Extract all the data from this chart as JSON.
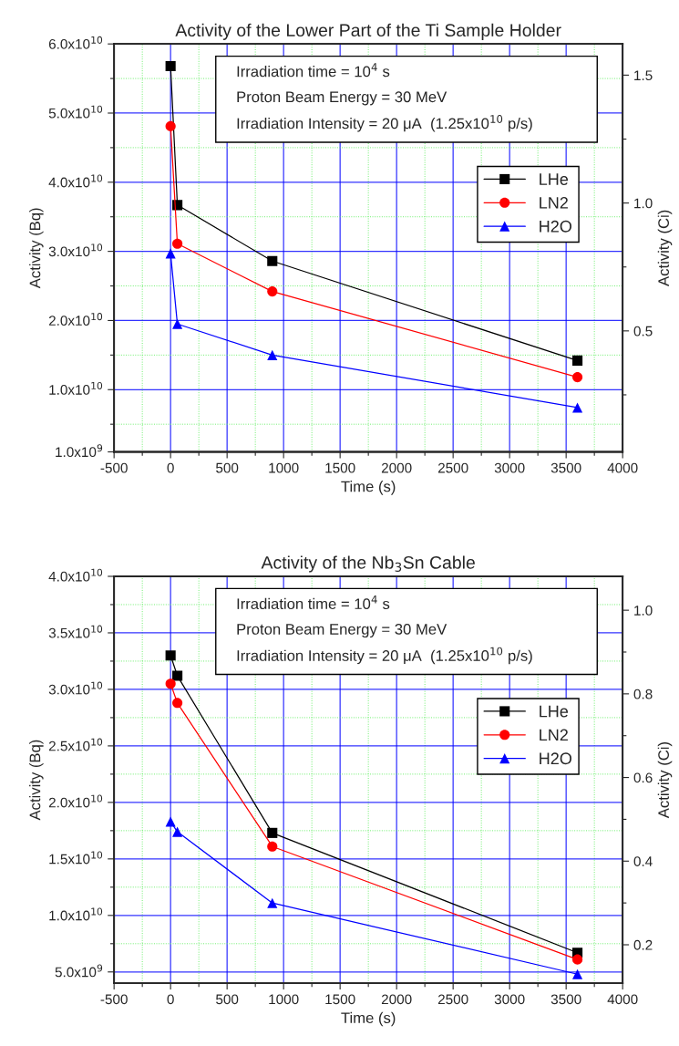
{
  "chart_data": [
    {
      "type": "line",
      "title": "Activity of the Lower Part of the Ti Sample Holder",
      "xlabel": "Time (s)",
      "ylabel": "Activity (Bq)",
      "y2label": "Activity (Ci)",
      "annotations": [
        "Irradiation time = 10$^{4}$ s",
        "Proton Beam Energy = 30 MeV",
        "Irradiation Intensity = 20 μA  (1.25x10$^{10}$ p/s)"
      ],
      "x": [
        0,
        60,
        900,
        3600
      ],
      "series": [
        {
          "name": "LHe",
          "color": "#000000",
          "marker": "square",
          "values": [
            56800000000.0,
            36700000000.0,
            28600000000.0,
            14200000000.0
          ]
        },
        {
          "name": "LN2",
          "color": "#ff0000",
          "marker": "circle",
          "values": [
            48100000000.0,
            31100000000.0,
            24200000000.0,
            11800000000.0
          ]
        },
        {
          "name": "H2O",
          "color": "#0000ff",
          "marker": "triangle",
          "values": [
            29700000000.0,
            19500000000.0,
            15000000000.0,
            7400000000.0
          ]
        }
      ],
      "xlim": [
        -500,
        4000
      ],
      "xticks": [
        -500,
        {
          "value": -250,
          "label": null
        },
        0,
        {
          "value": 250,
          "label": null
        },
        500,
        {
          "value": 750,
          "label": null
        },
        1000,
        {
          "value": 1250,
          "label": null
        },
        1500,
        {
          "value": 1750,
          "label": null
        },
        2000,
        {
          "value": 2250,
          "label": null
        },
        2500,
        {
          "value": 2750,
          "label": null
        },
        3000,
        {
          "value": 3250,
          "label": null
        },
        3500,
        {
          "value": 3750,
          "label": null
        },
        4000
      ],
      "ylim": [
        1000000000.0,
        60000000000.0
      ],
      "yticks": [
        {
          "value": 1000000000.0,
          "label": "1.0x10$^{9}$"
        },
        {
          "value": 5000000000.0,
          "label": null
        },
        {
          "value": 10000000000.0,
          "label": "1.0x10$^{10}$"
        },
        {
          "value": 15000000000.0,
          "label": null
        },
        {
          "value": 20000000000.0,
          "label": "2.0x10$^{10}$"
        },
        {
          "value": 25000000000.0,
          "label": null
        },
        {
          "value": 30000000000.0,
          "label": "3.0x10$^{10}$"
        },
        {
          "value": 35000000000.0,
          "label": null
        },
        {
          "value": 40000000000.0,
          "label": "4.0x10$^{10}$"
        },
        {
          "value": 45000000000.0,
          "label": null
        },
        {
          "value": 50000000000.0,
          "label": "5.0x10$^{10}$"
        },
        {
          "value": 55000000000.0,
          "label": null
        },
        {
          "value": 60000000000.0,
          "label": "6.0x10$^{10}$"
        }
      ],
      "y2lim": [
        0.027,
        1.622
      ],
      "y2ticks": [
        {
          "value": 0.25,
          "label": null
        },
        0.5,
        {
          "value": 0.75,
          "label": null
        },
        {
          "value": 1,
          "label": "1.0"
        },
        {
          "value": 1.25,
          "label": null
        },
        1.5
      ],
      "grid": true,
      "legend": "right",
      "line_style": "solid"
    },
    {
      "type": "line",
      "title": "Activity of the Nb$_{3}$Sn Cable",
      "xlabel": "Time (s)",
      "ylabel": "Activity (Bq)",
      "y2label": "Activity (Ci)",
      "annotations": [
        "Irradiation time = 10$^{4}$ s",
        "Proton Beam Energy = 30 MeV",
        "Irradiation Intensity = 20 μA  (1.25x10$^{10}$ p/s)"
      ],
      "x": [
        0,
        60,
        900,
        3600
      ],
      "series": [
        {
          "name": "LHe",
          "color": "#000000",
          "marker": "square",
          "values": [
            33000000000.0,
            31200000000.0,
            17300000000.0,
            6700000000.0
          ]
        },
        {
          "name": "LN2",
          "color": "#ff0000",
          "marker": "circle",
          "values": [
            30500000000.0,
            28800000000.0,
            16100000000.0,
            6100000000.0
          ]
        },
        {
          "name": "H2O",
          "color": "#0000ff",
          "marker": "triangle",
          "values": [
            18300000000.0,
            17400000000.0,
            11100000000.0,
            4800000000.0
          ]
        }
      ],
      "xlim": [
        -500,
        4000
      ],
      "xticks": [
        -500,
        {
          "value": -250,
          "label": null
        },
        0,
        {
          "value": 250,
          "label": null
        },
        500,
        {
          "value": 750,
          "label": null
        },
        1000,
        {
          "value": 1250,
          "label": null
        },
        1500,
        {
          "value": 1750,
          "label": null
        },
        2000,
        {
          "value": 2250,
          "label": null
        },
        2500,
        {
          "value": 2750,
          "label": null
        },
        3000,
        {
          "value": 3250,
          "label": null
        },
        3500,
        {
          "value": 3750,
          "label": null
        },
        4000
      ],
      "ylim": [
        4000000000.0,
        40000000000.0
      ],
      "yticks": [
        {
          "value": 5000000000.0,
          "label": "5.0x10$^{9}$"
        },
        {
          "value": 7500000000.0,
          "label": null
        },
        {
          "value": 10000000000.0,
          "label": "1.0x10$^{10}$"
        },
        {
          "value": 12500000000.0,
          "label": null
        },
        {
          "value": 15000000000.0,
          "label": "1.5x10$^{10}$"
        },
        {
          "value": 17500000000.0,
          "label": null
        },
        {
          "value": 20000000000.0,
          "label": "2.0x10$^{10}$"
        },
        {
          "value": 22500000000.0,
          "label": null
        },
        {
          "value": 25000000000.0,
          "label": "2.5x10$^{10}$"
        },
        {
          "value": 27500000000.0,
          "label": null
        },
        {
          "value": 30000000000.0,
          "label": "3.0x10$^{10}$"
        },
        {
          "value": 32500000000.0,
          "label": null
        },
        {
          "value": 35000000000.0,
          "label": "3.5x10$^{10}$"
        },
        {
          "value": 37500000000.0,
          "label": null
        },
        {
          "value": 40000000000.0,
          "label": "4.0x10$^{10}$"
        }
      ],
      "y2lim": [
        0.108,
        1.081
      ],
      "y2ticks": [
        0.2,
        {
          "value": 0.3,
          "label": null
        },
        0.4,
        {
          "value": 0.5,
          "label": null
        },
        0.6,
        {
          "value": 0.7,
          "label": null
        },
        0.8,
        {
          "value": 0.9,
          "label": null
        },
        {
          "value": 1,
          "label": "1.0"
        }
      ],
      "grid": true,
      "legend": "right",
      "line_style": "solid"
    }
  ]
}
